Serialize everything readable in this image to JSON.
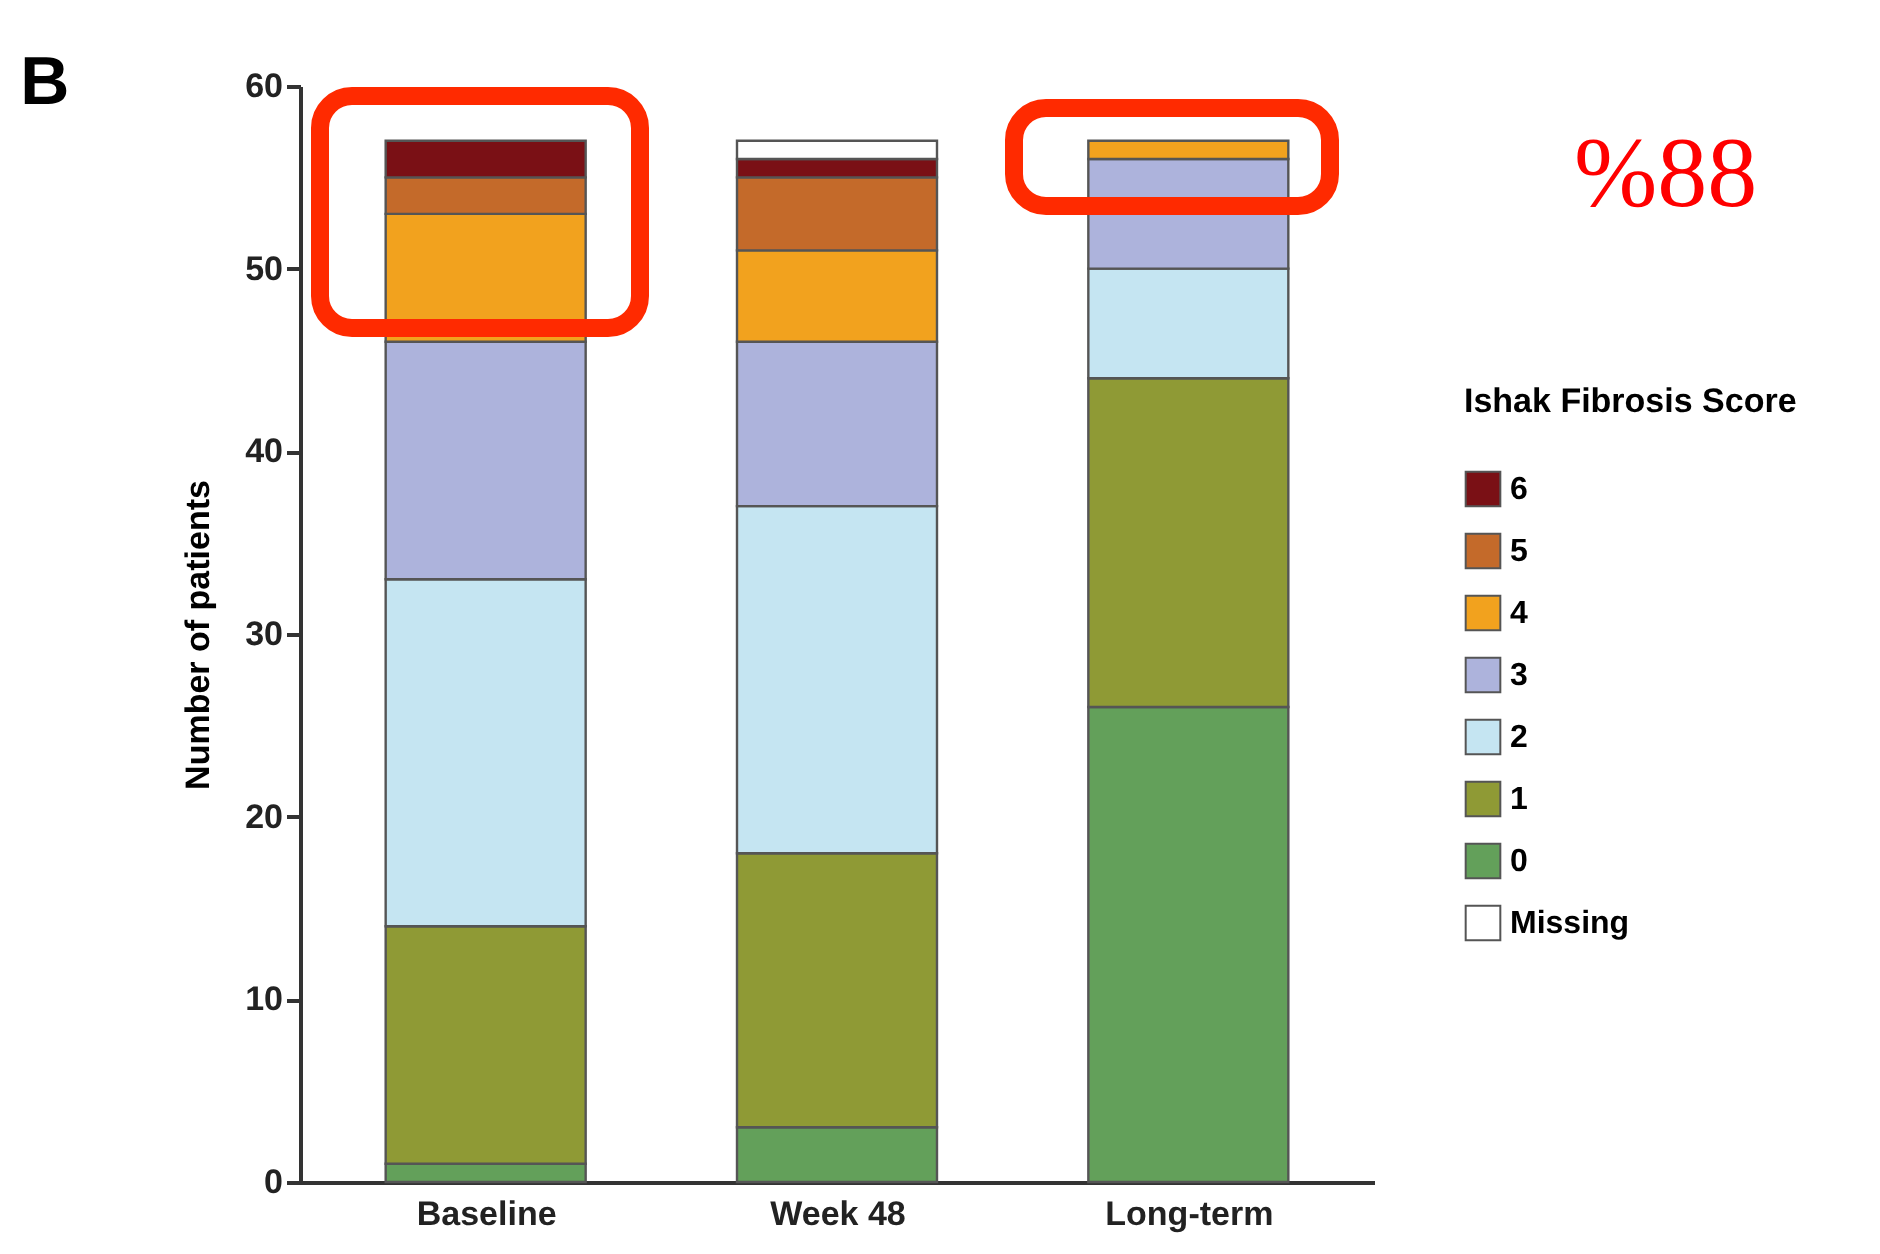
{
  "chart_data": {
    "type": "bar",
    "title": "B",
    "ylabel": "Number of patients",
    "legend_title": "Ishak Fibrosis Score",
    "categories": [
      "Baseline",
      "Week 48",
      "Long-term"
    ],
    "stacked": true,
    "series": [
      {
        "name": "0",
        "color": "#63a05a",
        "values": [
          1,
          3,
          26
        ]
      },
      {
        "name": "1",
        "color": "#8f9a35",
        "values": [
          13,
          15,
          18
        ]
      },
      {
        "name": "2",
        "color": "#c5e5f2",
        "values": [
          19,
          19,
          6
        ]
      },
      {
        "name": "3",
        "color": "#adb3dc",
        "values": [
          13,
          9,
          6
        ]
      },
      {
        "name": "4",
        "color": "#f2a21e",
        "values": [
          7,
          5,
          1
        ]
      },
      {
        "name": "5",
        "color": "#c46a2a",
        "values": [
          2,
          4,
          0
        ]
      },
      {
        "name": "6",
        "color": "#7a1015",
        "values": [
          2,
          1,
          0
        ]
      },
      {
        "name": "Missing",
        "color": "#ffffff",
        "values": [
          0,
          1,
          0
        ]
      }
    ],
    "ylim": [
      0,
      60
    ],
    "yticks": [
      0,
      10,
      20,
      30,
      40,
      50,
      60
    ],
    "grid": false,
    "legend": "right",
    "annotations": [
      "%88"
    ]
  }
}
